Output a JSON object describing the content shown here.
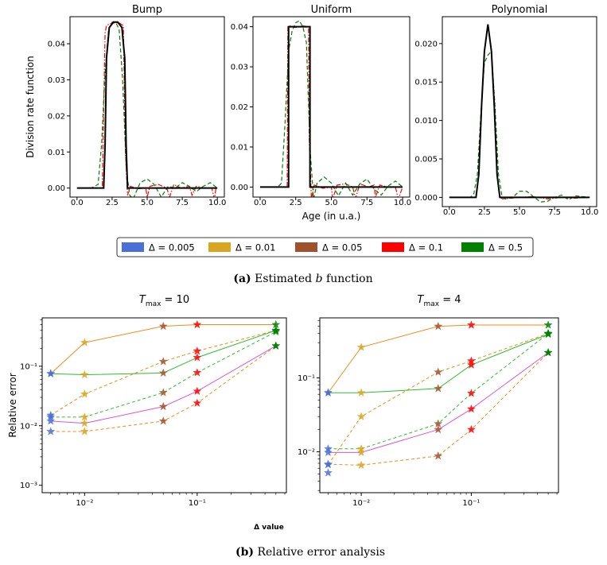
{
  "colors": {
    "d0005": "#4a6fd8",
    "d001": "#daa520",
    "d005": "#a0522d",
    "d01": "#ff0000",
    "d05": "#008000",
    "orange": "#f08c12",
    "green": "#2ebd2e",
    "magenta": "#d955d9",
    "true": "#000000"
  },
  "legend": [
    {
      "label": "Δ = 0.005",
      "color_key": "d0005"
    },
    {
      "label": "Δ = 0.01",
      "color_key": "d001"
    },
    {
      "label": "Δ = 0.05",
      "color_key": "d005"
    },
    {
      "label": "Δ = 0.1",
      "color_key": "d01"
    },
    {
      "label": "Δ = 0.5",
      "color_key": "d05"
    }
  ],
  "caption_a": {
    "label": "(a)",
    "text": " Estimated ",
    "var": "b",
    "rest": " function"
  },
  "caption_b": {
    "label": "(b)",
    "text": " Relative error analysis"
  },
  "chart_data": [
    {
      "type": "line",
      "title": "Bump",
      "xlabel": "",
      "ylabel": "Division rate function",
      "xlim": [
        -0.5,
        10.5
      ],
      "ylim": [
        -0.0025,
        0.0475
      ],
      "xticks": [
        0,
        2.5,
        5,
        7.5,
        10
      ],
      "xtick_labels": [
        "0.0",
        "2.5",
        "5.0",
        "7.5",
        "10.0"
      ],
      "yticks": [
        0,
        0.01,
        0.02,
        0.03,
        0.04
      ],
      "ytick_labels": [
        "0.00",
        "0.01",
        "0.02",
        "0.03",
        "0.04"
      ],
      "series": [
        {
          "name": "Δ = 0.1",
          "style": "dashdot",
          "color_key": "d01",
          "x": [
            0,
            1.8,
            2.0,
            2.1,
            2.3,
            2.7,
            3.0,
            3.3,
            3.45,
            3.6,
            3.8,
            4.3,
            4.9,
            5.0,
            5.2,
            5.8,
            6.4,
            6.6,
            6.9,
            7.4,
            8.0,
            8.2,
            8.5,
            9.1,
            9.6,
            9.8,
            9.9,
            10
          ],
          "y": [
            0,
            0,
            0.043,
            0.045,
            0.0455,
            0.0458,
            0.0458,
            0.045,
            0.01,
            -0.002,
            0.0005,
            -0.0002,
            0,
            -0.0025,
            0.0005,
            0.001,
            0,
            -0.0025,
            0.001,
            0,
            0.0005,
            -0.002,
            0.0005,
            0,
            0,
            -0.003,
            0,
            0
          ]
        },
        {
          "name": "Δ = 0.5",
          "style": "dashed",
          "color_key": "d05",
          "x": [
            0,
            1.0,
            1.5,
            1.75,
            2.0,
            2.25,
            2.5,
            2.75,
            3.0,
            3.25,
            3.5,
            3.75,
            4.0,
            4.5,
            5.0,
            5.5,
            6.0,
            6.5,
            7.0,
            7.5,
            8.0,
            8.5,
            9.0,
            9.5,
            10
          ],
          "y": [
            0,
            0,
            0.001,
            0.012,
            0.032,
            0.044,
            0.046,
            0.046,
            0.044,
            0.03,
            0.006,
            -0.002,
            -0.003,
            0.0015,
            0.0025,
            0.001,
            -0.0025,
            0.0005,
            0,
            0.0015,
            0.0005,
            -0.001,
            0.0005,
            0.0015,
            0
          ]
        },
        {
          "name": "True",
          "style": "solid",
          "color_key": "true",
          "x": [
            0,
            1.9,
            2.0,
            2.1,
            2.3,
            2.6,
            2.9,
            3.2,
            3.4,
            3.5,
            3.6,
            10
          ],
          "y": [
            0,
            0,
            0.012,
            0.036,
            0.0445,
            0.046,
            0.046,
            0.0445,
            0.036,
            0.012,
            0,
            0
          ]
        }
      ]
    },
    {
      "type": "line",
      "title": "Uniform",
      "xlabel": "Age (in u.a.)",
      "ylabel": "",
      "xlim": [
        -0.5,
        10.5
      ],
      "ylim": [
        -0.0025,
        0.0425
      ],
      "xticks": [
        0,
        2.5,
        5,
        7.5,
        10
      ],
      "xtick_labels": [
        "0.0",
        "2.5",
        "5.0",
        "7.5",
        "10.0"
      ],
      "yticks": [
        0,
        0.01,
        0.02,
        0.03,
        0.04
      ],
      "ytick_labels": [
        "0.00",
        "0.01",
        "0.02",
        "0.03",
        "0.04"
      ],
      "series": [
        {
          "name": "Δ = 0.1",
          "style": "dashdot",
          "color_key": "d01",
          "x": [
            0,
            1.9,
            1.95,
            2.1,
            2.5,
            3.0,
            3.4,
            3.45,
            3.6,
            3.8,
            4.4,
            5.0,
            5.1,
            5.4,
            6.0,
            6.5,
            6.7,
            7.0,
            7.6,
            8.0,
            8.1,
            8.4,
            9.0,
            9.5,
            9.7,
            10
          ],
          "y": [
            0,
            0,
            0.04,
            0.0402,
            0.0398,
            0.0402,
            0.04,
            0.012,
            -0.003,
            0.0005,
            -0.0003,
            0,
            -0.003,
            0.0005,
            0.0008,
            0,
            -0.0028,
            0.0008,
            0,
            0.0005,
            -0.0025,
            0.0005,
            0,
            0,
            -0.003,
            0
          ]
        },
        {
          "name": "Δ = 0.5",
          "style": "dashed",
          "color_key": "d05",
          "x": [
            0,
            1.25,
            1.5,
            1.75,
            2.0,
            2.25,
            2.5,
            2.75,
            3.0,
            3.25,
            3.5,
            3.75,
            4.0,
            4.5,
            5.0,
            5.5,
            6.0,
            6.5,
            7.0,
            7.5,
            8.0,
            8.5,
            9.0,
            9.5,
            10
          ],
          "y": [
            0,
            0,
            0.001,
            0.016,
            0.034,
            0.039,
            0.041,
            0.0415,
            0.04,
            0.036,
            0.01,
            -0.003,
            0.001,
            0.0025,
            0.001,
            -0.0022,
            0.001,
            -0.002,
            0.0008,
            0.002,
            -0.0005,
            -0.002,
            0.0003,
            0.0015,
            0
          ]
        },
        {
          "name": "True",
          "style": "solid",
          "color_key": "true",
          "x": [
            0,
            2.0,
            2.0,
            3.5,
            3.5,
            10
          ],
          "y": [
            0,
            0,
            0.04,
            0.04,
            0,
            0
          ]
        }
      ]
    },
    {
      "type": "line",
      "title": "Polynomial",
      "xlabel": "",
      "ylabel": "",
      "xlim": [
        -0.5,
        10.5
      ],
      "ylim": [
        -0.0012,
        0.0235
      ],
      "xticks": [
        0,
        2.5,
        5,
        7.5,
        10
      ],
      "xtick_labels": [
        "0.0",
        "2.5",
        "5.0",
        "7.5",
        "10.0"
      ],
      "yticks": [
        0,
        0.005,
        0.01,
        0.015,
        0.02
      ],
      "ytick_labels": [
        "0.000",
        "0.005",
        "0.010",
        "0.015",
        "0.020"
      ],
      "series": [
        {
          "name": "Δ = 0.1",
          "style": "dashdot",
          "color_key": "d01",
          "x": [
            0,
            1.9,
            2.1,
            2.3,
            2.5,
            2.75,
            3.0,
            3.2,
            3.4,
            3.6,
            3.8,
            5.0,
            6.0,
            7.0,
            8.0,
            9.0,
            10
          ],
          "y": [
            0,
            0,
            0.003,
            0.012,
            0.019,
            0.0225,
            0.019,
            0.012,
            0.003,
            0,
            -0.0002,
            0,
            0.0001,
            -0.0002,
            0,
            -0.0001,
            0
          ]
        },
        {
          "name": "Δ = 0.5",
          "style": "dashed",
          "color_key": "d05",
          "x": [
            0,
            1.5,
            1.75,
            2.0,
            2.25,
            2.5,
            2.75,
            3.0,
            3.25,
            3.5,
            3.75,
            4.0,
            4.5,
            5.0,
            5.5,
            6.0,
            6.5,
            7.0,
            7.5,
            8.0,
            8.5,
            9.0,
            9.5,
            10
          ],
          "y": [
            0,
            0,
            0.0005,
            0.003,
            0.011,
            0.0175,
            0.0185,
            0.019,
            0.012,
            0.003,
            0.0002,
            -0.0002,
            0,
            0.0008,
            0.0008,
            0.0001,
            -0.0006,
            -0.0005,
            0,
            0.0003,
            -0.0003,
            0.0002,
            0.0001,
            0
          ]
        },
        {
          "name": "True",
          "style": "solid",
          "color_key": "true",
          "x": [
            0,
            1.9,
            2.1,
            2.3,
            2.5,
            2.75,
            3.0,
            3.2,
            3.4,
            3.6,
            10
          ],
          "y": [
            0,
            0,
            0.003,
            0.012,
            0.019,
            0.0225,
            0.019,
            0.012,
            0.003,
            0,
            0
          ]
        }
      ]
    },
    {
      "type": "line",
      "title_main": "T",
      "title_sub": "max",
      "title_rest": " = 10",
      "xlabel": "Δ value",
      "ylabel": "Relative error",
      "xscale": "log",
      "yscale": "log",
      "xlim": [
        0.0042,
        0.62
      ],
      "ylim": [
        0.00075,
        0.65
      ],
      "xticks": [
        0.01,
        0.1
      ],
      "yticks": [
        0.001,
        0.01,
        0.1
      ],
      "marker_colors": [
        "d0005",
        "d001",
        "d005",
        "d01",
        "d05"
      ],
      "x": [
        0.005,
        0.01,
        0.05,
        0.1,
        0.5
      ],
      "series": [
        {
          "name": "orange-solid",
          "color_key": "orange",
          "style": "solid",
          "values": [
            0.075,
            0.25,
            0.47,
            0.5,
            0.5
          ]
        },
        {
          "name": "orange-dashed",
          "color_key": "orange",
          "style": "dashed",
          "values": [
            0.015,
            0.034,
            0.12,
            0.18,
            0.4
          ]
        },
        {
          "name": "orange-dashed-low",
          "color_key": "orange",
          "style": "dashed",
          "values": [
            0.008,
            0.008,
            0.012,
            0.024,
            0.22
          ]
        },
        {
          "name": "green-solid",
          "color_key": "green",
          "style": "solid",
          "values": [
            0.075,
            0.072,
            0.077,
            0.14,
            0.4
          ]
        },
        {
          "name": "green-dashed",
          "color_key": "green",
          "style": "dashed",
          "values": [
            0.014,
            0.014,
            0.036,
            0.078,
            0.38
          ]
        },
        {
          "name": "magenta-solid",
          "color_key": "magenta",
          "style": "solid",
          "values": [
            0.012,
            0.011,
            0.021,
            0.038,
            0.22
          ]
        }
      ]
    },
    {
      "type": "line",
      "title_main": "T",
      "title_sub": "max",
      "title_rest": " = 4",
      "xlabel": "",
      "ylabel": "",
      "xscale": "log",
      "yscale": "log",
      "xlim": [
        0.0042,
        0.62
      ],
      "ylim": [
        0.0028,
        0.65
      ],
      "xticks": [
        0.01,
        0.1
      ],
      "yticks": [
        0.01,
        0.1
      ],
      "marker_colors": [
        "d0005",
        "d001",
        "d005",
        "d01",
        "d05"
      ],
      "x": [
        0.005,
        0.01,
        0.05,
        0.1,
        0.5
      ],
      "series": [
        {
          "name": "orange-solid",
          "color_key": "orange",
          "style": "solid",
          "values": [
            0.063,
            0.26,
            0.5,
            0.52,
            0.52
          ]
        },
        {
          "name": "orange-dashed",
          "color_key": "orange",
          "style": "dashed",
          "values": [
            0.0067,
            0.03,
            0.12,
            0.17,
            0.4
          ]
        },
        {
          "name": "orange-dashed-low",
          "color_key": "orange",
          "style": "dashed",
          "values": [
            0.0068,
            0.0066,
            0.0088,
            0.02,
            0.22
          ]
        },
        {
          "name": "green-solid",
          "color_key": "green",
          "style": "solid",
          "values": [
            0.063,
            0.063,
            0.072,
            0.15,
            0.39
          ]
        },
        {
          "name": "green-dashed",
          "color_key": "green",
          "style": "dashed",
          "values": [
            0.011,
            0.011,
            0.024,
            0.062,
            0.4
          ]
        },
        {
          "name": "magenta-solid",
          "color_key": "magenta",
          "style": "solid",
          "values": [
            0.0098,
            0.0098,
            0.02,
            0.038,
            0.22
          ]
        },
        {
          "name": "blue-low",
          "color_key": "d0005",
          "style": "none",
          "values": [
            0.0052,
            null,
            null,
            null,
            null
          ]
        }
      ]
    }
  ]
}
